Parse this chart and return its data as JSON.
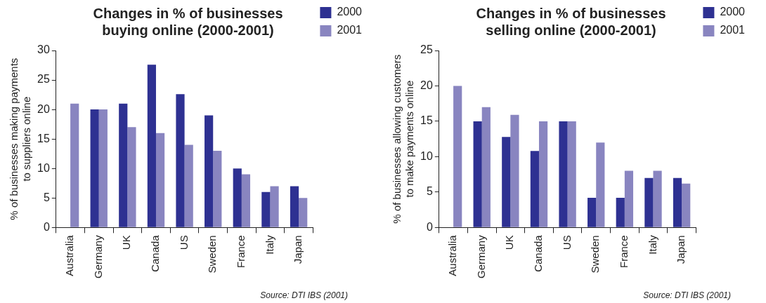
{
  "chart_data": [
    {
      "type": "bar",
      "title": "Changes in % of businesses\nbuying online (2000-2001)",
      "ylabel": "% of businesses making payments\nto suppliers online",
      "categories": [
        "Australia",
        "Germany",
        "UK",
        "Canada",
        "US",
        "Sweden",
        "France",
        "Italy",
        "Japan"
      ],
      "series": [
        {
          "name": "2000",
          "color": "#2e3192",
          "values": [
            null,
            20,
            21,
            27.6,
            22.6,
            19,
            10,
            6,
            7
          ]
        },
        {
          "name": "2001",
          "color": "#8985c0",
          "values": [
            21,
            20,
            17,
            16,
            14,
            13,
            9,
            7,
            5
          ]
        }
      ],
      "ylim": [
        0,
        30
      ],
      "yticks": [
        0,
        5,
        10,
        15,
        20,
        25,
        30
      ],
      "legend": "top right",
      "annotations": [
        "Source: DTI IBS (2001)"
      ]
    },
    {
      "type": "bar",
      "title": "Changes in % of businesses\nselling online (2000-2001)",
      "ylabel": "% of businesses allowing customers\nto make payments online",
      "categories": [
        "Australia",
        "Germany",
        "UK",
        "Canada",
        "US",
        "Sweden",
        "France",
        "Italy",
        "Japan"
      ],
      "series": [
        {
          "name": "2000",
          "color": "#2e3192",
          "values": [
            null,
            15,
            12.8,
            10.8,
            15,
            4.2,
            4.2,
            7,
            7
          ]
        },
        {
          "name": "2001",
          "color": "#8985c0",
          "values": [
            20,
            17,
            15.9,
            15,
            15,
            12,
            8,
            8,
            6.2
          ]
        }
      ],
      "ylim": [
        0,
        25
      ],
      "yticks": [
        0,
        5,
        10,
        15,
        20,
        25
      ],
      "legend": "top right",
      "annotations": [
        "Source: DTI IBS (2001)"
      ]
    }
  ]
}
